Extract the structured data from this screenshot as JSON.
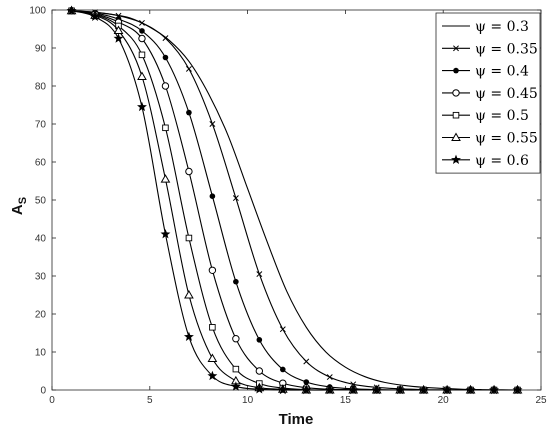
{
  "chart_data": {
    "type": "line",
    "title": "",
    "xlabel": "Time",
    "ylabel": "A",
    "ylabel_sub": "S",
    "xlim": [
      0,
      25
    ],
    "ylim": [
      0,
      100
    ],
    "xticks": [
      0,
      5,
      10,
      15,
      20,
      25
    ],
    "yticks": [
      0,
      10,
      20,
      30,
      40,
      50,
      60,
      70,
      80,
      90,
      100
    ],
    "grid": false,
    "legend_position": "top-right",
    "line_color": "#000000",
    "series": [
      {
        "name": "ψ = 0.3",
        "marker": "none",
        "x": [
          1,
          2,
          3,
          4,
          5,
          6,
          7,
          8,
          9,
          10,
          11,
          12,
          13,
          14,
          15,
          16,
          17,
          18,
          19,
          20,
          21,
          22,
          23,
          24
        ],
        "y": [
          99.8,
          99.5,
          98.9,
          97.9,
          95.5,
          92,
          86.5,
          78,
          67,
          53,
          39,
          26,
          16.5,
          10,
          6,
          3.5,
          2,
          1.2,
          0.7,
          0.4,
          0.2,
          0.1,
          0.05,
          0
        ]
      },
      {
        "name": "ψ = 0.35",
        "marker": "x",
        "x": [
          1,
          2.2,
          3.4,
          4.6,
          5.8,
          7,
          8.2,
          9.4,
          10.6,
          11.8,
          13,
          14.2,
          15.4,
          16.6,
          17.8,
          19,
          20.2,
          21.4,
          22.6,
          23.8
        ],
        "y": [
          99.8,
          99.4,
          98.5,
          96.6,
          92.6,
          84.5,
          70,
          50.5,
          30.5,
          16,
          7.5,
          3.4,
          1.5,
          0.7,
          0.3,
          0.1,
          0.05,
          0,
          0,
          0
        ]
      },
      {
        "name": "ψ = 0.4",
        "marker": "dot",
        "x": [
          1,
          2.2,
          3.4,
          4.6,
          5.8,
          7,
          8.2,
          9.4,
          10.6,
          11.8,
          13,
          14.2,
          15.4,
          16.6,
          17.8,
          19,
          20.2,
          21.4,
          22.6,
          23.8
        ],
        "y": [
          99.8,
          99.2,
          97.6,
          94.5,
          87.5,
          73,
          51,
          28.5,
          13.2,
          5.4,
          2.1,
          0.8,
          0.3,
          0.1,
          0,
          0,
          0,
          0,
          0,
          0
        ]
      },
      {
        "name": "ψ = 0.45",
        "marker": "circle",
        "x": [
          1,
          2.2,
          3.4,
          4.6,
          5.8,
          7,
          8.2,
          9.4,
          10.6,
          11.8,
          13,
          14.2,
          15.4,
          16.6,
          17.8,
          19,
          20.2,
          21.4,
          22.6,
          23.8
        ],
        "y": [
          99.8,
          99,
          96.8,
          92.5,
          80,
          57.5,
          31.5,
          13.5,
          5,
          1.8,
          0.6,
          0.2,
          0.1,
          0,
          0,
          0,
          0,
          0,
          0,
          0
        ]
      },
      {
        "name": "ψ = 0.5",
        "marker": "square",
        "x": [
          1,
          2.2,
          3.4,
          4.6,
          5.8,
          7,
          8.2,
          9.4,
          10.6,
          11.8,
          13,
          14.2,
          15.4,
          16.6,
          17.8,
          19,
          20.2,
          21.4,
          22.6,
          23.8
        ],
        "y": [
          99.8,
          98.8,
          95.8,
          88.2,
          69,
          40,
          16.5,
          5.5,
          1.7,
          0.5,
          0.1,
          0,
          0,
          0,
          0,
          0,
          0,
          0,
          0,
          0
        ]
      },
      {
        "name": "ψ = 0.55",
        "marker": "triangle",
        "x": [
          1,
          2.2,
          3.4,
          4.6,
          5.8,
          7,
          8.2,
          9.4,
          10.6,
          11.8,
          13,
          14.2,
          15.4,
          16.6,
          17.8,
          19,
          20.2,
          21.4,
          22.6,
          23.8
        ],
        "y": [
          99.8,
          98.6,
          94.6,
          82.5,
          55.5,
          25,
          8.3,
          2.4,
          0.6,
          0.2,
          0,
          0,
          0,
          0,
          0,
          0,
          0,
          0,
          0,
          0
        ]
      },
      {
        "name": "ψ = 0.6",
        "marker": "star",
        "x": [
          1,
          2.2,
          3.4,
          4.6,
          5.8,
          7,
          8.2,
          9.4,
          10.6,
          11.8,
          13,
          14.2,
          15.4,
          16.6,
          17.8,
          19,
          20.2,
          21.4,
          22.6,
          23.8
        ],
        "y": [
          99.8,
          98.2,
          92.5,
          74.5,
          41,
          14,
          3.7,
          0.9,
          0.2,
          0,
          0,
          0,
          0,
          0,
          0,
          0,
          0,
          0,
          0,
          0
        ]
      }
    ]
  }
}
